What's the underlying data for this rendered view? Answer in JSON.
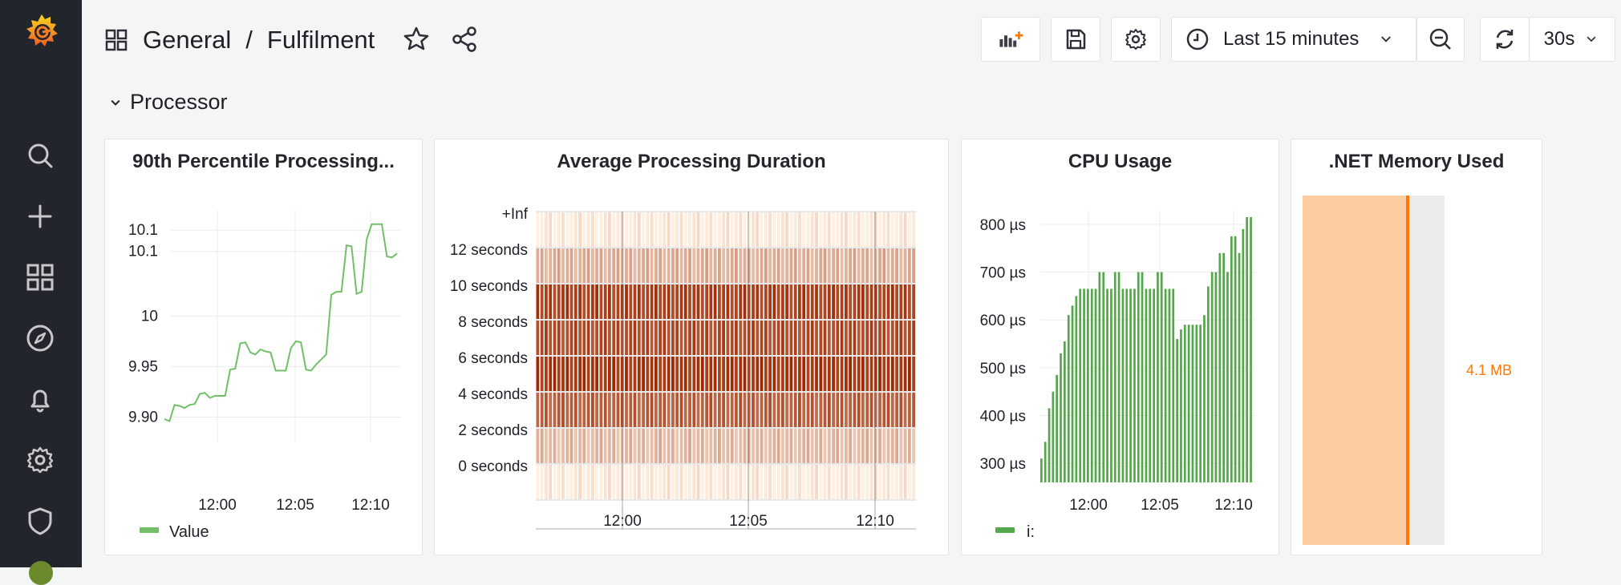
{
  "breadcrumb": {
    "folder": "General",
    "separator": "/",
    "dashboard": "Fulfilment"
  },
  "toolbar": {
    "time_range": "Last 15 minutes",
    "refresh_interval": "30s"
  },
  "row": {
    "title": "Processor"
  },
  "panels": {
    "p90": {
      "title": "90th Percentile Processing...",
      "legend": "Value",
      "color": "#73bf69"
    },
    "heatmap": {
      "title": "Average Processing Duration",
      "color": "#c4470f"
    },
    "cpu": {
      "title": "CPU Usage",
      "legend": "i:",
      "color": "#56a64b"
    },
    "memory": {
      "title": ".NET Memory Used",
      "value": "4.1 MB",
      "fill_fraction": 0.75,
      "color": "#ff780a"
    }
  },
  "chart_data": [
    {
      "type": "line",
      "title": "90th Percentile Processing...",
      "x_ticks": [
        "12:00",
        "12:05",
        "12:10"
      ],
      "y_ticks": [
        "9.90",
        "9.95",
        "10",
        "10.1",
        "10.1"
      ],
      "ylim": [
        9.875,
        10.105
      ],
      "series": [
        {
          "name": "Value",
          "values": [
            9.898,
            9.896,
            9.912,
            9.911,
            9.909,
            9.912,
            9.913,
            9.923,
            9.924,
            9.919,
            9.921,
            9.921,
            9.921,
            9.947,
            9.948,
            9.973,
            9.974,
            9.964,
            9.962,
            9.967,
            9.965,
            9.964,
            9.946,
            9.946,
            9.946,
            9.968,
            9.975,
            9.974,
            9.947,
            9.946,
            9.952,
            9.957,
            9.962,
            10.021,
            10.024,
            10.024,
            10.07,
            10.069,
            10.022,
            10.024,
            10.076,
            10.091,
            10.091,
            10.091,
            10.059,
            10.058,
            10.062
          ]
        }
      ]
    },
    {
      "type": "heatmap",
      "title": "Average Processing Duration",
      "x_ticks": [
        "12:00",
        "12:05",
        "12:10"
      ],
      "y_buckets": [
        "0 seconds",
        "2 seconds",
        "4 seconds",
        "6 seconds",
        "8 seconds",
        "10 seconds",
        "12 seconds",
        "+Inf"
      ],
      "bucket_intensity": [
        0.05,
        0.3,
        0.75,
        0.95,
        0.85,
        0.9,
        0.35,
        0.05
      ]
    },
    {
      "type": "bar",
      "title": "CPU Usage",
      "x_ticks": [
        "12:00",
        "12:05",
        "12:10"
      ],
      "y_ticks": [
        "300 µs",
        "400 µs",
        "500 µs",
        "600 µs",
        "700 µs",
        "800 µs"
      ],
      "ylim": [
        260,
        830
      ],
      "series": [
        {
          "name": "i:",
          "values": [
            310,
            345,
            415,
            450,
            485,
            530,
            555,
            610,
            630,
            650,
            665,
            665,
            665,
            665,
            665,
            700,
            700,
            665,
            665,
            700,
            700,
            665,
            665,
            665,
            665,
            700,
            700,
            665,
            665,
            665,
            700,
            700,
            665,
            665,
            665,
            560,
            580,
            590,
            590,
            590,
            590,
            590,
            610,
            670,
            700,
            700,
            740,
            740,
            700,
            775,
            775,
            740,
            790,
            815,
            815
          ]
        }
      ]
    },
    {
      "type": "bar-gauge",
      "title": ".NET Memory Used",
      "value": "4.1 MB",
      "fill_fraction": 0.75
    }
  ]
}
